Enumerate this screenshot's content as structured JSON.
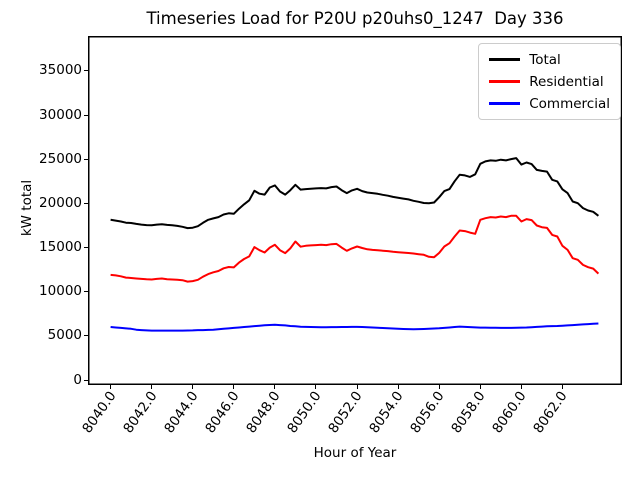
{
  "figure": {
    "background": "#ffffff"
  },
  "chart_data": {
    "type": "line",
    "title": "Timeseries Load for P20U p20uhs0_1247  Day 336",
    "xlabel": "Hour of Year",
    "ylabel": "kW total",
    "x_ticks": [
      "8040.0",
      "8042.0",
      "8044.0",
      "8046.0",
      "8048.0",
      "8050.0",
      "8052.0",
      "8054.0",
      "8056.0",
      "8058.0",
      "8060.0",
      "8062.0"
    ],
    "y_ticks": [
      "0",
      "5000",
      "10000",
      "15000",
      "20000",
      "25000",
      "30000",
      "35000"
    ],
    "xlim": [
      8038.9,
      8064.9
    ],
    "ylim": [
      -566,
      38962
    ],
    "x_start": 8040.0,
    "x_step": 0.25,
    "grid": false,
    "legend": {
      "position": "upper right",
      "entries": [
        "Total",
        "Residential",
        "Commercial"
      ]
    },
    "series": [
      {
        "name": "Total",
        "color": "#000000",
        "values": [
          18150,
          18050,
          17950,
          17820,
          17780,
          17680,
          17600,
          17550,
          17520,
          17600,
          17650,
          17570,
          17520,
          17450,
          17350,
          17200,
          17250,
          17420,
          17800,
          18150,
          18300,
          18450,
          18750,
          18880,
          18820,
          19400,
          19900,
          20350,
          21430,
          21100,
          21000,
          21800,
          22040,
          21350,
          21000,
          21500,
          22110,
          21570,
          21620,
          21670,
          21700,
          21740,
          21700,
          21850,
          21920,
          21500,
          21170,
          21470,
          21660,
          21400,
          21240,
          21170,
          21090,
          20980,
          20870,
          20740,
          20650,
          20550,
          20450,
          20300,
          20180,
          20050,
          20030,
          20100,
          20700,
          21400,
          21620,
          22500,
          23250,
          23170,
          23000,
          23300,
          24490,
          24760,
          24870,
          24830,
          24950,
          24870,
          25020,
          25130,
          24400,
          24640,
          24450,
          23800,
          23680,
          23600,
          22680,
          22490,
          21600,
          21170,
          20220,
          20030,
          19470,
          19200,
          19050,
          18600
        ]
      },
      {
        "name": "Residential",
        "color": "#ff0000",
        "values": [
          11900,
          11850,
          11750,
          11600,
          11550,
          11500,
          11450,
          11400,
          11380,
          11450,
          11500,
          11420,
          11380,
          11350,
          11300,
          11150,
          11200,
          11350,
          11700,
          12000,
          12200,
          12350,
          12650,
          12800,
          12750,
          13300,
          13700,
          14000,
          15050,
          14700,
          14440,
          15000,
          15310,
          14700,
          14370,
          14900,
          15690,
          15100,
          15200,
          15250,
          15280,
          15310,
          15280,
          15380,
          15420,
          15000,
          14630,
          14900,
          15120,
          14950,
          14800,
          14740,
          14700,
          14650,
          14600,
          14520,
          14480,
          14430,
          14380,
          14330,
          14250,
          14180,
          13950,
          13910,
          14400,
          15120,
          15500,
          16250,
          16930,
          16860,
          16700,
          16560,
          18140,
          18330,
          18450,
          18410,
          18520,
          18450,
          18600,
          18600,
          17950,
          18220,
          18110,
          17500,
          17310,
          17230,
          16440,
          16250,
          15200,
          14740,
          13800,
          13610,
          13040,
          12780,
          12620,
          12050
        ]
      },
      {
        "name": "Commercial",
        "color": "#0000ff",
        "values": [
          6000,
          5950,
          5900,
          5850,
          5800,
          5700,
          5650,
          5620,
          5600,
          5600,
          5600,
          5600,
          5600,
          5600,
          5600,
          5610,
          5620,
          5650,
          5650,
          5680,
          5700,
          5750,
          5800,
          5850,
          5900,
          5950,
          6000,
          6050,
          6100,
          6150,
          6200,
          6230,
          6250,
          6220,
          6180,
          6120,
          6080,
          6040,
          6020,
          6000,
          5990,
          5980,
          5980,
          5990,
          5990,
          6000,
          6000,
          6010,
          6010,
          6000,
          5980,
          5950,
          5920,
          5890,
          5860,
          5830,
          5800,
          5780,
          5760,
          5750,
          5760,
          5780,
          5800,
          5830,
          5860,
          5900,
          5950,
          6000,
          6050,
          6020,
          5990,
          5960,
          5940,
          5930,
          5920,
          5910,
          5900,
          5900,
          5900,
          5910,
          5930,
          5950,
          5980,
          6010,
          6050,
          6080,
          6100,
          6120,
          6150,
          6180,
          6220,
          6260,
          6300,
          6330,
          6370,
          6400
        ]
      }
    ]
  }
}
